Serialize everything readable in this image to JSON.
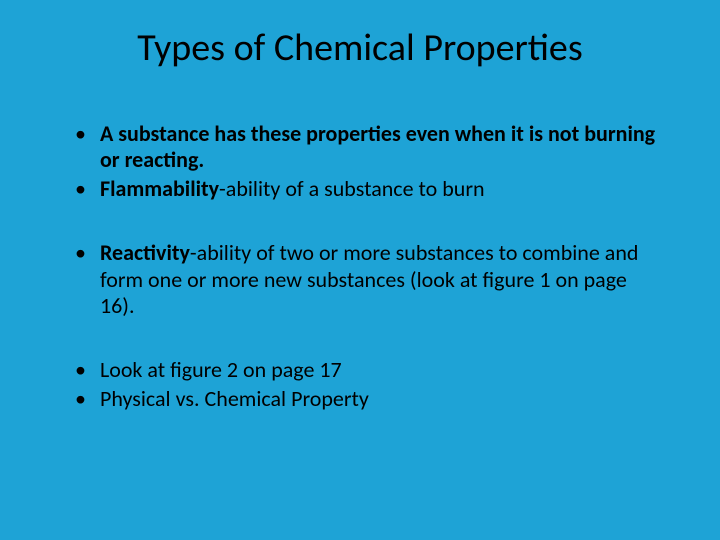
{
  "slide": {
    "background_color": "#1ea3d6",
    "text_color": "#000000",
    "title": "Types of Chemical Properties",
    "title_fontsize": 38,
    "body_fontsize": 22,
    "groups": [
      {
        "items": [
          {
            "bold": "A substance has these properties even when it is not burning or reacting.",
            "rest": ""
          },
          {
            "bold": "Flammability",
            "rest": "-ability of a substance to burn"
          }
        ]
      },
      {
        "items": [
          {
            "bold": "Reactivity",
            "rest": "-ability of two or more substances to combine and form one or more new substances (look at figure 1 on page 16)."
          }
        ]
      },
      {
        "items": [
          {
            "bold": "",
            "rest": "Look at figure 2 on page 17"
          },
          {
            "bold": "",
            "rest": "Physical vs. Chemical Property"
          }
        ]
      }
    ]
  }
}
